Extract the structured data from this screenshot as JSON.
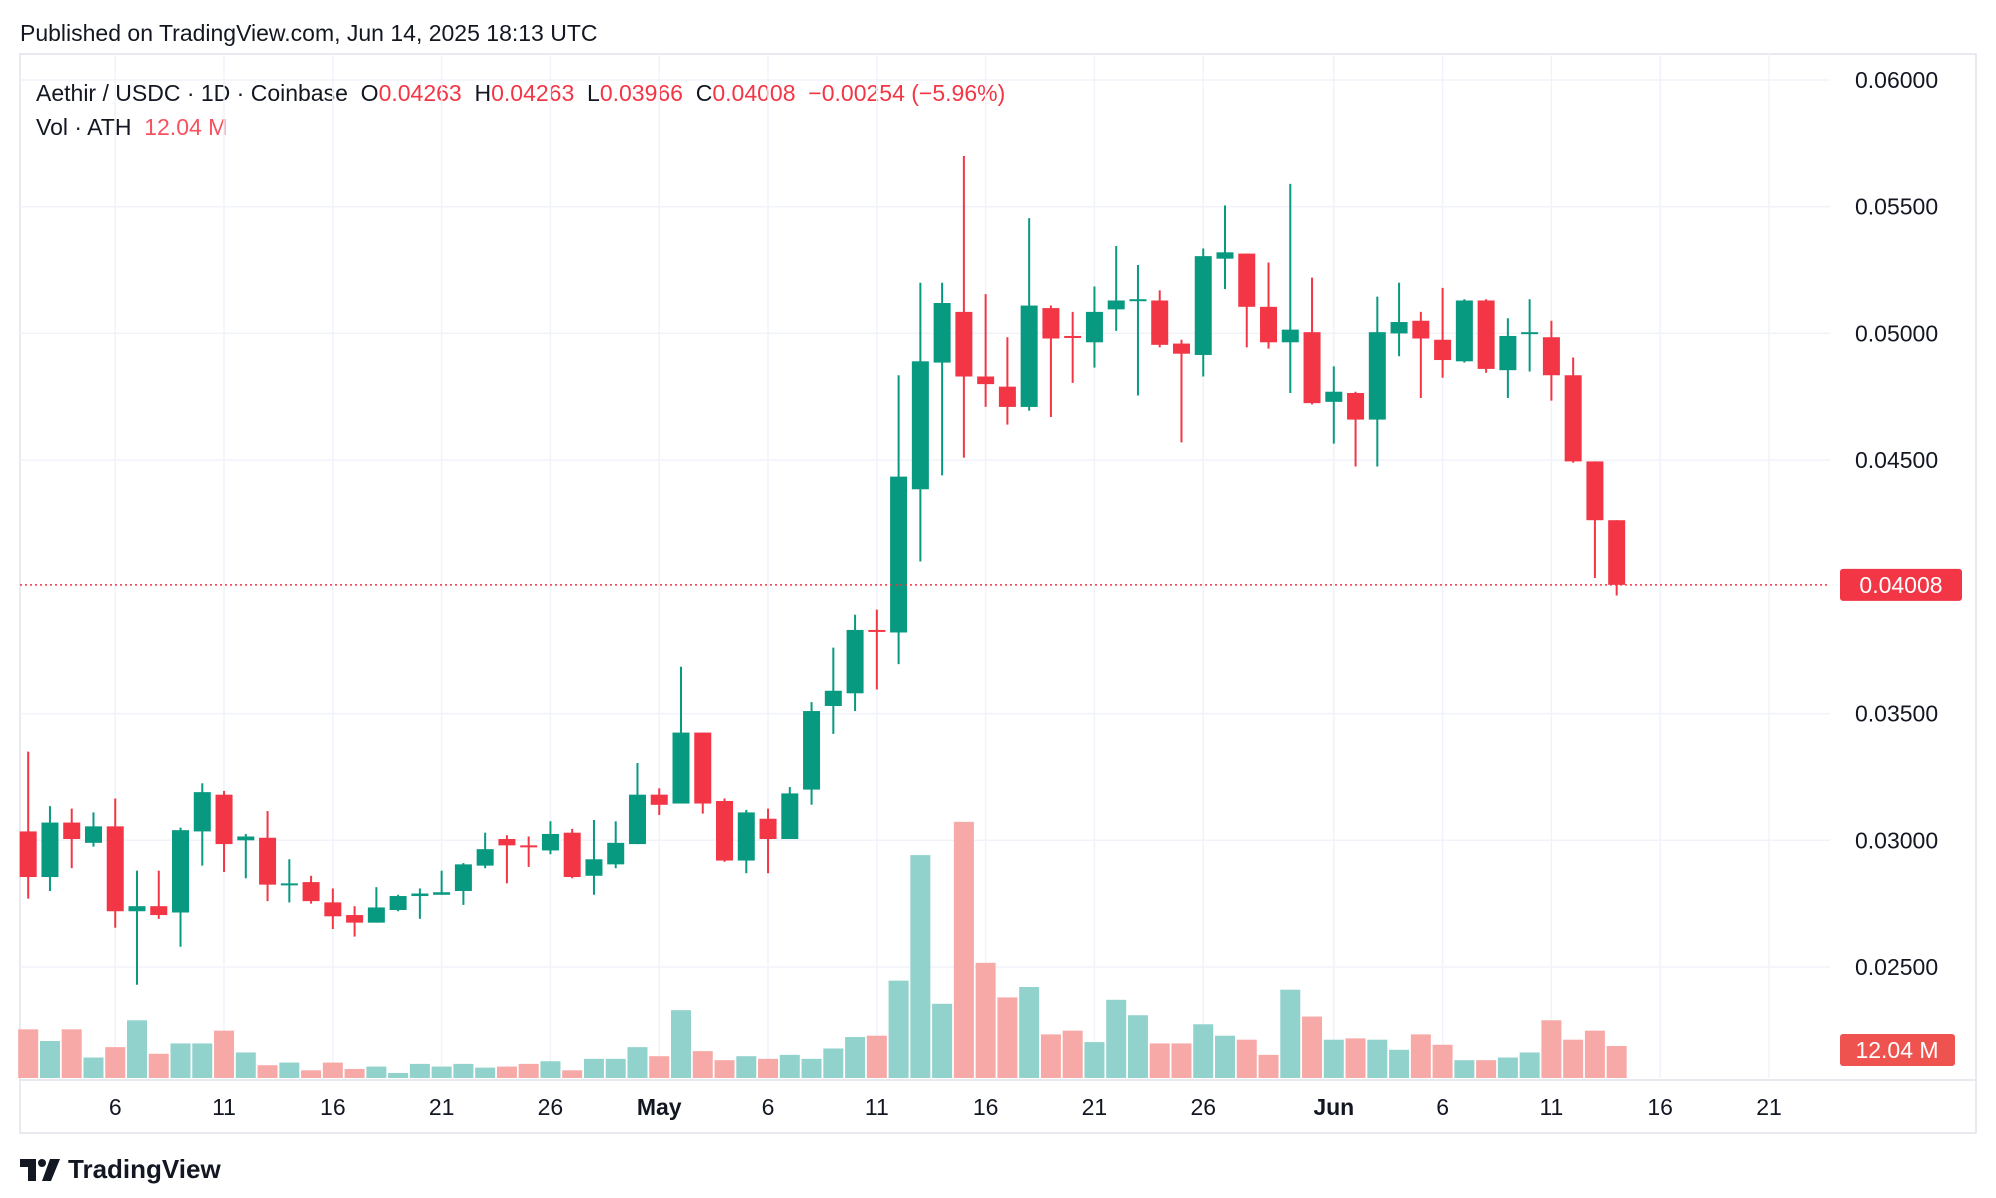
{
  "published": "Published on TradingView.com, Jun 14, 2025 18:13 UTC",
  "legend": {
    "symbol": "Aethir / USDC · 1D · Coinbase",
    "o_label": "O",
    "o_value": "0.04263",
    "h_label": "H",
    "h_value": "0.04263",
    "l_label": "L",
    "l_value": "0.03966",
    "c_label": "C",
    "c_value": "0.04008",
    "change": "−0.00254 (−5.96%)",
    "vol_label": "Vol · ATH",
    "vol_value": "12.04 M"
  },
  "brand": "TradingView",
  "colors": {
    "up": "#089981",
    "down": "#f23645",
    "vol_up": "#92d2cc",
    "vol_down": "#f7a9a7",
    "grid": "#f0f3fa"
  },
  "chart_data": {
    "type": "candlestick",
    "title": "Aethir / USDC · 1D · Coinbase",
    "ylim": [
      0.0245,
      0.0605
    ],
    "y_ticks": [
      "0.06000",
      "0.05500",
      "0.05000",
      "0.04500",
      "0.03500",
      "0.03000",
      "0.02500"
    ],
    "x_ticks": [
      [
        "6",
        "Apr 6"
      ],
      [
        "11",
        "Apr 11"
      ],
      [
        "16",
        "Apr 16"
      ],
      [
        "21",
        "Apr 21"
      ],
      [
        "26",
        "Apr 26"
      ],
      [
        "May",
        "May 1"
      ],
      [
        "6",
        "May 6"
      ],
      [
        "11",
        "May 11"
      ],
      [
        "16",
        "May 16"
      ],
      [
        "21",
        "May 21"
      ],
      [
        "26",
        "May 26"
      ],
      [
        "Jun",
        "Jun 1"
      ],
      [
        "6",
        "Jun 6"
      ],
      [
        "11",
        "Jun 11"
      ],
      [
        "16",
        "Jun 16"
      ],
      [
        "21",
        "Jun 21"
      ]
    ],
    "last_price_label": "0.04008",
    "last_volume_label": "12.04 M",
    "columns": [
      "date",
      "open",
      "high",
      "low",
      "close",
      "volume_M"
    ],
    "candles": [
      [
        "Apr 2",
        0.03035,
        0.0335,
        0.0277,
        0.02855,
        18.3
      ],
      [
        "Apr 3",
        0.02855,
        0.03135,
        0.028,
        0.0307,
        13.9
      ],
      [
        "Apr 4",
        0.0307,
        0.03125,
        0.0289,
        0.03005,
        18.3
      ],
      [
        "Apr 5",
        0.0299,
        0.0311,
        0.02975,
        0.03055,
        7.7
      ],
      [
        "Apr 6",
        0.03055,
        0.03165,
        0.02655,
        0.0272,
        11.6
      ],
      [
        "Apr 7",
        0.0272,
        0.0288,
        0.0243,
        0.0274,
        21.7
      ],
      [
        "Apr 8",
        0.0274,
        0.0288,
        0.0269,
        0.02705,
        9.1
      ],
      [
        "Apr 9",
        0.02715,
        0.0305,
        0.0258,
        0.0304,
        13.0
      ],
      [
        "Apr 10",
        0.03035,
        0.03225,
        0.029,
        0.0319,
        13.0
      ],
      [
        "Apr 11",
        0.0318,
        0.03195,
        0.02875,
        0.02985,
        17.8
      ],
      [
        "Apr 12",
        0.03,
        0.03025,
        0.0285,
        0.03015,
        9.6
      ],
      [
        "Apr 13",
        0.0301,
        0.03115,
        0.0276,
        0.02825,
        4.8
      ],
      [
        "Apr 14",
        0.02825,
        0.02925,
        0.02755,
        0.0283,
        5.8
      ],
      [
        "Apr 15",
        0.02835,
        0.0286,
        0.0275,
        0.0276,
        2.9
      ],
      [
        "Apr 16",
        0.02755,
        0.0281,
        0.0265,
        0.027,
        5.8
      ],
      [
        "Apr 17",
        0.02705,
        0.0274,
        0.0262,
        0.02675,
        3.4
      ],
      [
        "Apr 18",
        0.02675,
        0.02815,
        0.02675,
        0.02735,
        4.3
      ],
      [
        "Apr 19",
        0.02725,
        0.02785,
        0.0272,
        0.0278,
        1.9
      ],
      [
        "Apr 20",
        0.0278,
        0.0281,
        0.0269,
        0.0279,
        5.3
      ],
      [
        "Apr 21",
        0.02785,
        0.0288,
        0.02785,
        0.02795,
        4.3
      ],
      [
        "Apr 22",
        0.028,
        0.0291,
        0.02745,
        0.02905,
        5.3
      ],
      [
        "Apr 23",
        0.029,
        0.0303,
        0.0289,
        0.02965,
        3.9
      ],
      [
        "Apr 24",
        0.03005,
        0.0302,
        0.0283,
        0.0298,
        4.3
      ],
      [
        "Apr 25",
        0.0298,
        0.03015,
        0.02895,
        0.02975,
        5.3
      ],
      [
        "Apr 26",
        0.0296,
        0.03075,
        0.02945,
        0.03025,
        6.3
      ],
      [
        "Apr 27",
        0.0303,
        0.03045,
        0.0285,
        0.02855,
        2.9
      ],
      [
        "Apr 28",
        0.0286,
        0.0308,
        0.02785,
        0.02925,
        7.2
      ],
      [
        "Apr 29",
        0.02905,
        0.03075,
        0.0289,
        0.0299,
        7.2
      ],
      [
        "Apr 30",
        0.02985,
        0.03305,
        0.02985,
        0.0318,
        11.6
      ],
      [
        "May 1",
        0.0318,
        0.03205,
        0.031,
        0.0314,
        8.2
      ],
      [
        "May 2",
        0.03145,
        0.03685,
        0.03145,
        0.03425,
        25.5
      ],
      [
        "May 3",
        0.03425,
        0.03425,
        0.03105,
        0.03145,
        10.1
      ],
      [
        "May 4",
        0.03155,
        0.03165,
        0.02915,
        0.0292,
        6.7
      ],
      [
        "May 5",
        0.0292,
        0.0312,
        0.0287,
        0.0311,
        8.2
      ],
      [
        "May 6",
        0.03085,
        0.03125,
        0.0287,
        0.03005,
        7.2
      ],
      [
        "May 7",
        0.03005,
        0.0321,
        0.03005,
        0.03185,
        8.7
      ],
      [
        "May 8",
        0.032,
        0.03545,
        0.0314,
        0.0351,
        7.2
      ],
      [
        "May 9",
        0.0353,
        0.0376,
        0.0342,
        0.0359,
        11.1
      ],
      [
        "May 10",
        0.0358,
        0.0389,
        0.0351,
        0.0383,
        15.4
      ],
      [
        "May 11",
        0.0383,
        0.0391,
        0.03595,
        0.03825,
        15.9
      ],
      [
        "May 12",
        0.0382,
        0.04835,
        0.03695,
        0.04435,
        36.6
      ],
      [
        "May 13",
        0.04385,
        0.052,
        0.041,
        0.0489,
        83.8
      ],
      [
        "May 14",
        0.04885,
        0.052,
        0.0444,
        0.0512,
        27.9
      ],
      [
        "May 15",
        0.05085,
        0.057,
        0.0451,
        0.0483,
        96.3
      ],
      [
        "May 16",
        0.0483,
        0.05155,
        0.0471,
        0.048,
        43.3
      ],
      [
        "May 17",
        0.0479,
        0.04985,
        0.0464,
        0.0471,
        30.3
      ],
      [
        "May 18",
        0.0471,
        0.05455,
        0.04695,
        0.0511,
        34.2
      ],
      [
        "May 19",
        0.051,
        0.0511,
        0.0467,
        0.0498,
        16.4
      ],
      [
        "May 20",
        0.0499,
        0.05085,
        0.04805,
        0.04985,
        17.8
      ],
      [
        "May 21",
        0.04965,
        0.05185,
        0.04865,
        0.05085,
        13.5
      ],
      [
        "May 22",
        0.05095,
        0.05345,
        0.0501,
        0.0513,
        29.4
      ],
      [
        "May 23",
        0.0513,
        0.0527,
        0.04755,
        0.05135,
        23.6
      ],
      [
        "May 24",
        0.0513,
        0.0517,
        0.04945,
        0.04955,
        13.0
      ],
      [
        "May 25",
        0.0496,
        0.04975,
        0.0457,
        0.0492,
        13.0
      ],
      [
        "May 26",
        0.04915,
        0.05335,
        0.0483,
        0.05305,
        20.2
      ],
      [
        "May 27",
        0.05295,
        0.05505,
        0.05175,
        0.0532,
        15.9
      ],
      [
        "May 28",
        0.05315,
        0.05315,
        0.04945,
        0.05105,
        14.4
      ],
      [
        "May 29",
        0.05105,
        0.0528,
        0.0494,
        0.04965,
        8.7
      ],
      [
        "May 30",
        0.04965,
        0.0559,
        0.04765,
        0.05015,
        33.2
      ],
      [
        "May 31",
        0.05005,
        0.0522,
        0.0472,
        0.04725,
        23.1
      ],
      [
        "Jun 1",
        0.0473,
        0.0487,
        0.04565,
        0.0477,
        14.4
      ],
      [
        "Jun 2",
        0.04765,
        0.0477,
        0.04475,
        0.0466,
        14.9
      ],
      [
        "Jun 3",
        0.0466,
        0.05145,
        0.04475,
        0.05005,
        14.4
      ],
      [
        "Jun 4",
        0.05,
        0.052,
        0.0491,
        0.05045,
        10.6
      ],
      [
        "Jun 5",
        0.0505,
        0.05085,
        0.04745,
        0.0498,
        16.4
      ],
      [
        "Jun 6",
        0.04975,
        0.0518,
        0.04825,
        0.04895,
        12.5
      ],
      [
        "Jun 7",
        0.0489,
        0.05135,
        0.04885,
        0.0513,
        6.7
      ],
      [
        "Jun 8",
        0.0513,
        0.05135,
        0.04845,
        0.0486,
        6.7
      ],
      [
        "Jun 9",
        0.04855,
        0.0506,
        0.04745,
        0.0499,
        7.7
      ],
      [
        "Jun 10",
        0.05,
        0.05135,
        0.0485,
        0.05005,
        9.6
      ],
      [
        "Jun 11",
        0.04985,
        0.0505,
        0.04735,
        0.04835,
        21.7
      ],
      [
        "Jun 12",
        0.04835,
        0.04905,
        0.0449,
        0.04495,
        14.4
      ],
      [
        "Jun 13",
        0.04495,
        0.04495,
        0.04035,
        0.04263,
        17.8
      ],
      [
        "Jun 14",
        0.04263,
        0.04263,
        0.03966,
        0.04008,
        12.04
      ]
    ]
  }
}
